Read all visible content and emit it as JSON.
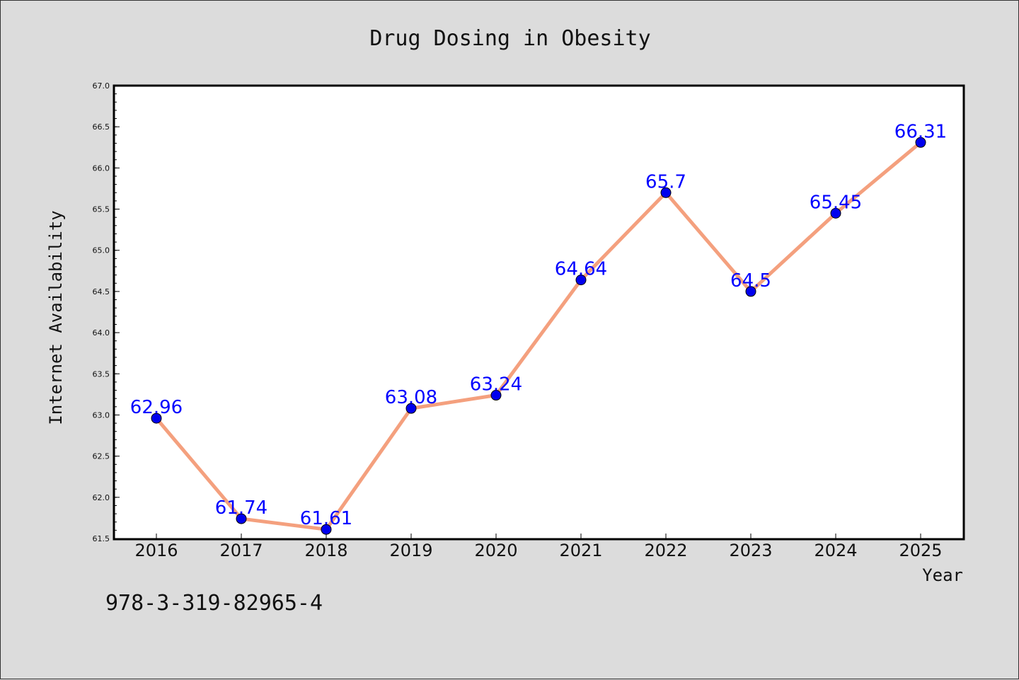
{
  "chart_data": {
    "type": "line",
    "title": "Drug Dosing in Obesity",
    "xlabel": "Year",
    "ylabel": "Internet Availability",
    "categories": [
      "2016",
      "2017",
      "2018",
      "2019",
      "2020",
      "2021",
      "2022",
      "2023",
      "2024",
      "2025"
    ],
    "series": [
      {
        "values": [
          62.96,
          61.74,
          61.61,
          63.08,
          63.24,
          64.64,
          65.7,
          64.5,
          65.45,
          66.31
        ],
        "line_color": "#f4a07e",
        "marker_color": "#0000ee"
      }
    ],
    "data_labels": [
      "62.96",
      "61.74",
      "61.61",
      "63.08",
      "63.24",
      "64.64",
      "65.7",
      "64.5",
      "65.45",
      "66.31"
    ],
    "ylim": [
      61.5,
      67.0
    ],
    "yticks": [
      "61.5",
      "62.0",
      "62.5",
      "63.0",
      "63.5",
      "64.0",
      "64.5",
      "65.0",
      "65.5",
      "66.0",
      "66.5",
      "67.0"
    ],
    "grid": false,
    "data_label_color": "#0000ff"
  },
  "footer": {
    "isbn": "978-3-319-82965-4"
  }
}
